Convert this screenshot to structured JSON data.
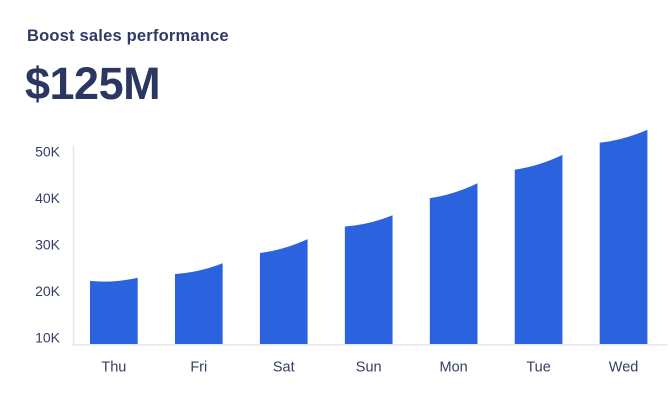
{
  "header": {
    "title": "Boost sales performance",
    "value": "$125M"
  },
  "chart_data": {
    "type": "bar",
    "style": "bars sliced from a rising area curve (slanted curved tops)",
    "title": "Boost sales performance",
    "headline_value": "$125M",
    "categories": [
      "Thu",
      "Fri",
      "Sat",
      "Sun",
      "Mon",
      "Tue",
      "Wed"
    ],
    "values_k": [
      22.5,
      24.8,
      29.7,
      35.1,
      41.6,
      47.7,
      53.3
    ],
    "bar_edge_values_k": [
      [
        22.2,
        22.9
      ],
      [
        23.7,
        26.0
      ],
      [
        28.2,
        31.2
      ],
      [
        33.9,
        36.3
      ],
      [
        40.0,
        43.2
      ],
      [
        46.1,
        49.3
      ],
      [
        51.9,
        54.7
      ]
    ],
    "y_ticks": [
      "10K",
      "20K",
      "30K",
      "40K",
      "50K"
    ],
    "y_tick_values_k": [
      10,
      20,
      30,
      40,
      50
    ],
    "ylim_k": [
      8.6,
      56
    ],
    "xlabel": "",
    "ylabel": "",
    "grid": false,
    "legend": false,
    "colors": {
      "bar": "#2B63DE",
      "axis_line": "#E6E7EA",
      "tick_label": "#333F63",
      "title_text": "#2F3B66",
      "metric_text": "#2B3760",
      "background": "#FFFFFF"
    }
  }
}
